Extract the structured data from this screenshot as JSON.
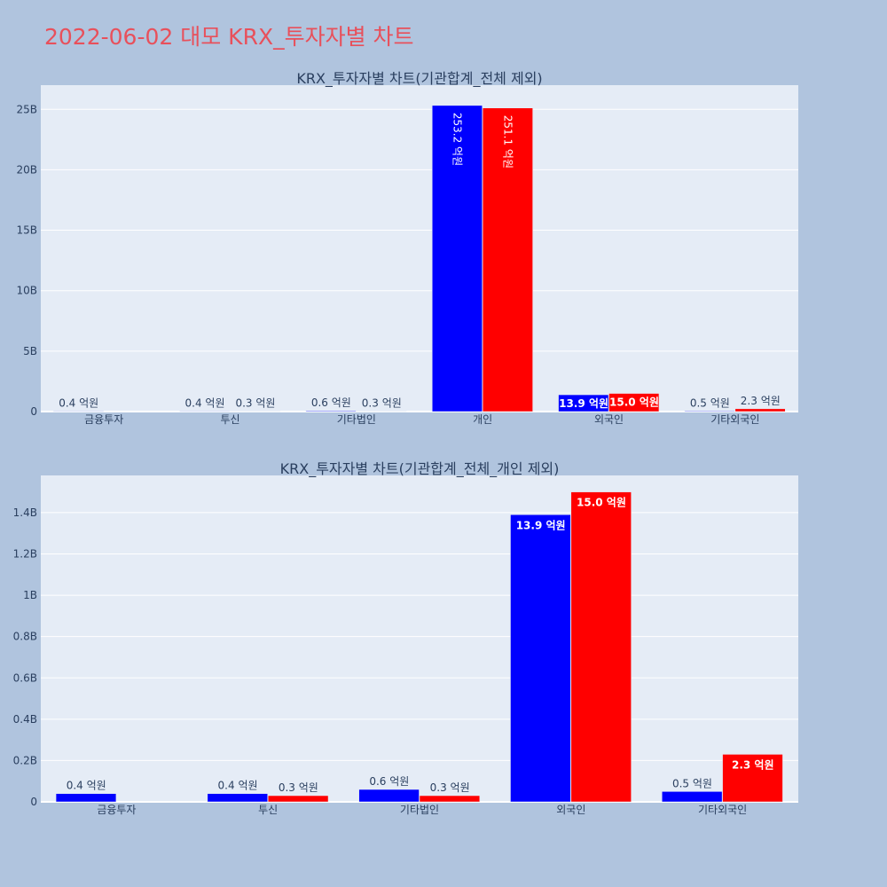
{
  "page": {
    "title": "2022-06-02 대모 KRX_투자자별 차트"
  },
  "colors": {
    "background": "#b0c4de",
    "plot_bg": "#e5ecf6",
    "title": "#e8505b",
    "series_a": "#0000ff",
    "series_b": "#ff0000",
    "text": "#2a3f5f"
  },
  "chart_data": [
    {
      "type": "bar",
      "title": "KRX_투자자별 차트(기관합계_전체 제외)",
      "categories": [
        "금융투자",
        "투신",
        "기타법인",
        "개인",
        "외국인",
        "기타외국인"
      ],
      "series": [
        {
          "color": "#0000ff",
          "values": [
            40000000,
            40000000,
            60000000,
            25320000000,
            1390000000,
            50000000
          ],
          "labels": [
            "0.4 억원",
            "0.4 억원",
            "0.6 억원",
            "253.2 억원",
            "13.9 억원",
            "0.5 억원"
          ]
        },
        {
          "color": "#ff0000",
          "values": [
            0,
            30000000,
            30000000,
            25110000000,
            1500000000,
            230000000
          ],
          "labels": [
            "",
            "0.3 억원",
            "0.3 억원",
            "251.1 억원",
            "15.0 억원",
            "2.3 억원"
          ]
        }
      ],
      "ylim": [
        0,
        27000000000
      ],
      "yticks": [
        0,
        5000000000,
        10000000000,
        15000000000,
        20000000000,
        25000000000
      ],
      "ytick_labels": [
        "0",
        "5B",
        "10B",
        "15B",
        "20B",
        "25B"
      ],
      "grid": true,
      "legend": "none"
    },
    {
      "type": "bar",
      "title": "KRX_투자자별 차트(기관합계_전체_개인 제외)",
      "categories": [
        "금융투자",
        "투신",
        "기타법인",
        "외국인",
        "기타외국인"
      ],
      "series": [
        {
          "color": "#0000ff",
          "values": [
            40000000,
            40000000,
            60000000,
            1390000000,
            50000000
          ],
          "labels": [
            "0.4 억원",
            "0.4 억원",
            "0.6 억원",
            "13.9 억원",
            "0.5 억원"
          ]
        },
        {
          "color": "#ff0000",
          "values": [
            0,
            30000000,
            30000000,
            1500000000,
            230000000
          ],
          "labels": [
            "",
            "0.3 억원",
            "0.3 억원",
            "15.0 억원",
            "2.3 억원"
          ]
        }
      ],
      "ylim": [
        0,
        1580000000
      ],
      "yticks": [
        0,
        200000000,
        400000000,
        600000000,
        800000000,
        1000000000,
        1200000000,
        1400000000
      ],
      "ytick_labels": [
        "0",
        "0.2B",
        "0.4B",
        "0.6B",
        "0.8B",
        "1B",
        "1.2B",
        "1.4B"
      ],
      "grid": true,
      "legend": "none"
    }
  ]
}
